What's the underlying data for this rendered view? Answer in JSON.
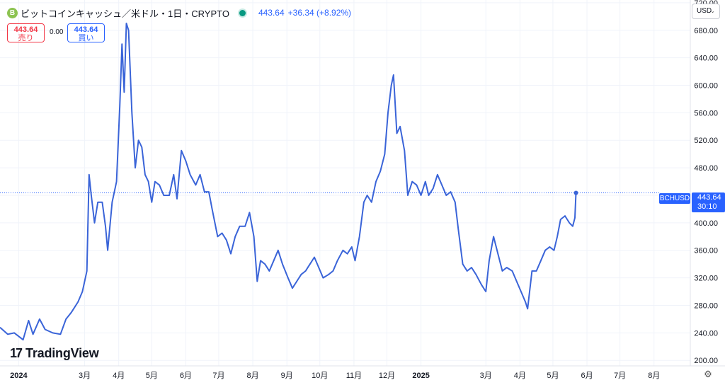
{
  "header": {
    "coin_icon": "B",
    "title": "ビットコインキャッシュ／米ドル・1日・CRYPTO",
    "price": "443.64",
    "change": "+36.34 (+8.92%)"
  },
  "sell": {
    "price": "443.64",
    "label": "売り"
  },
  "spread": "0.00",
  "buy": {
    "price": "443.64",
    "label": "買い"
  },
  "currency": "USD",
  "brand": "TradingView",
  "icons": {
    "coin": "bitcoin-cash-icon",
    "live": "market-open-dot-icon",
    "currency_chevron": "chevron-down-icon",
    "settings": "gear-icon",
    "logo": "tradingview-logo-icon"
  },
  "colors": {
    "line": "#3a64d8",
    "accent": "#2962ff",
    "sell": "#f23645",
    "live": "#089981",
    "grid": "#f0f3fa"
  },
  "price_tag": {
    "symbol": "BCHUSD",
    "price": "443.64",
    "countdown": "30:10"
  },
  "chart_data": {
    "type": "line",
    "series": [
      {
        "name": "BCHUSD",
        "points": [
          [
            "2023-12-15",
            248
          ],
          [
            "2023-12-22",
            238
          ],
          [
            "2023-12-28",
            240
          ],
          [
            "2024-01-05",
            230
          ],
          [
            "2024-01-10",
            258
          ],
          [
            "2024-01-14",
            238
          ],
          [
            "2024-01-20",
            260
          ],
          [
            "2024-01-25",
            245
          ],
          [
            "2024-02-01",
            240
          ],
          [
            "2024-02-08",
            238
          ],
          [
            "2024-02-13",
            260
          ],
          [
            "2024-02-18",
            270
          ],
          [
            "2024-02-24",
            285
          ],
          [
            "2024-02-28",
            300
          ],
          [
            "2024-03-03",
            330
          ],
          [
            "2024-03-05",
            470
          ],
          [
            "2024-03-07",
            440
          ],
          [
            "2024-03-10",
            400
          ],
          [
            "2024-03-13",
            430
          ],
          [
            "2024-03-17",
            430
          ],
          [
            "2024-03-20",
            395
          ],
          [
            "2024-03-22",
            360
          ],
          [
            "2024-03-26",
            430
          ],
          [
            "2024-03-30",
            460
          ],
          [
            "2024-04-02",
            570
          ],
          [
            "2024-04-04",
            660
          ],
          [
            "2024-04-06",
            590
          ],
          [
            "2024-04-08",
            690
          ],
          [
            "2024-04-10",
            680
          ],
          [
            "2024-04-13",
            560
          ],
          [
            "2024-04-16",
            480
          ],
          [
            "2024-04-19",
            520
          ],
          [
            "2024-04-22",
            510
          ],
          [
            "2024-04-25",
            470
          ],
          [
            "2024-04-28",
            460
          ],
          [
            "2024-05-01",
            430
          ],
          [
            "2024-05-04",
            460
          ],
          [
            "2024-05-08",
            455
          ],
          [
            "2024-05-12",
            440
          ],
          [
            "2024-05-17",
            440
          ],
          [
            "2024-05-21",
            470
          ],
          [
            "2024-05-24",
            435
          ],
          [
            "2024-05-28",
            505
          ],
          [
            "2024-06-01",
            490
          ],
          [
            "2024-06-05",
            470
          ],
          [
            "2024-06-10",
            455
          ],
          [
            "2024-06-14",
            470
          ],
          [
            "2024-06-18",
            445
          ],
          [
            "2024-06-22",
            445
          ],
          [
            "2024-06-25",
            420
          ],
          [
            "2024-06-30",
            380
          ],
          [
            "2024-07-04",
            385
          ],
          [
            "2024-07-08",
            375
          ],
          [
            "2024-07-12",
            355
          ],
          [
            "2024-07-16",
            380
          ],
          [
            "2024-07-20",
            395
          ],
          [
            "2024-07-25",
            395
          ],
          [
            "2024-07-29",
            415
          ],
          [
            "2024-08-02",
            380
          ],
          [
            "2024-08-05",
            315
          ],
          [
            "2024-08-08",
            345
          ],
          [
            "2024-08-12",
            340
          ],
          [
            "2024-08-16",
            330
          ],
          [
            "2024-08-20",
            345
          ],
          [
            "2024-08-24",
            360
          ],
          [
            "2024-08-28",
            340
          ],
          [
            "2024-09-02",
            320
          ],
          [
            "2024-09-06",
            305
          ],
          [
            "2024-09-10",
            315
          ],
          [
            "2024-09-14",
            325
          ],
          [
            "2024-09-18",
            330
          ],
          [
            "2024-09-22",
            340
          ],
          [
            "2024-09-26",
            350
          ],
          [
            "2024-09-30",
            335
          ],
          [
            "2024-10-04",
            320
          ],
          [
            "2024-10-09",
            325
          ],
          [
            "2024-10-13",
            330
          ],
          [
            "2024-10-17",
            345
          ],
          [
            "2024-10-22",
            360
          ],
          [
            "2024-10-26",
            355
          ],
          [
            "2024-10-30",
            365
          ],
          [
            "2024-11-02",
            345
          ],
          [
            "2024-11-06",
            380
          ],
          [
            "2024-11-10",
            430
          ],
          [
            "2024-11-13",
            440
          ],
          [
            "2024-11-17",
            430
          ],
          [
            "2024-11-21",
            460
          ],
          [
            "2024-11-25",
            475
          ],
          [
            "2024-11-29",
            500
          ],
          [
            "2024-12-02",
            560
          ],
          [
            "2024-12-05",
            600
          ],
          [
            "2024-12-07",
            615
          ],
          [
            "2024-12-10",
            530
          ],
          [
            "2024-12-13",
            540
          ],
          [
            "2024-12-17",
            505
          ],
          [
            "2024-12-20",
            440
          ],
          [
            "2024-12-24",
            460
          ],
          [
            "2024-12-28",
            455
          ],
          [
            "2025-01-01",
            440
          ],
          [
            "2025-01-05",
            460
          ],
          [
            "2025-01-08",
            440
          ],
          [
            "2025-01-12",
            450
          ],
          [
            "2025-01-16",
            470
          ],
          [
            "2025-01-20",
            455
          ],
          [
            "2025-01-24",
            440
          ],
          [
            "2025-01-28",
            445
          ],
          [
            "2025-02-01",
            430
          ],
          [
            "2025-02-04",
            390
          ],
          [
            "2025-02-08",
            340
          ],
          [
            "2025-02-12",
            330
          ],
          [
            "2025-02-16",
            335
          ],
          [
            "2025-02-20",
            325
          ],
          [
            "2025-02-25",
            310
          ],
          [
            "2025-03-01",
            300
          ],
          [
            "2025-03-04",
            345
          ],
          [
            "2025-03-08",
            380
          ],
          [
            "2025-03-12",
            355
          ],
          [
            "2025-03-16",
            330
          ],
          [
            "2025-03-20",
            335
          ],
          [
            "2025-03-25",
            330
          ],
          [
            "2025-03-29",
            315
          ],
          [
            "2025-04-02",
            300
          ],
          [
            "2025-04-06",
            285
          ],
          [
            "2025-04-08",
            275
          ],
          [
            "2025-04-12",
            330
          ],
          [
            "2025-04-16",
            330
          ],
          [
            "2025-04-20",
            345
          ],
          [
            "2025-04-24",
            360
          ],
          [
            "2025-04-28",
            365
          ],
          [
            "2025-05-02",
            360
          ],
          [
            "2025-05-05",
            380
          ],
          [
            "2025-05-08",
            405
          ],
          [
            "2025-05-12",
            410
          ],
          [
            "2025-05-16",
            400
          ],
          [
            "2025-05-19",
            395
          ],
          [
            "2025-05-21",
            407.3
          ],
          [
            "2025-05-22",
            443.64
          ]
        ]
      }
    ],
    "x_ticks": [
      {
        "label": "2024",
        "date": "2024-01-01",
        "bold": true
      },
      {
        "label": "3月",
        "date": "2024-03-01"
      },
      {
        "label": "4月",
        "date": "2024-04-01"
      },
      {
        "label": "5月",
        "date": "2024-05-01"
      },
      {
        "label": "6月",
        "date": "2024-06-01"
      },
      {
        "label": "7月",
        "date": "2024-07-01"
      },
      {
        "label": "8月",
        "date": "2024-08-01"
      },
      {
        "label": "9月",
        "date": "2024-09-01"
      },
      {
        "label": "10月",
        "date": "2024-10-01"
      },
      {
        "label": "11月",
        "date": "2024-11-01"
      },
      {
        "label": "12月",
        "date": "2024-12-01"
      },
      {
        "label": "2025",
        "date": "2025-01-01",
        "bold": true
      },
      {
        "label": "3月",
        "date": "2025-03-01"
      },
      {
        "label": "4月",
        "date": "2025-04-01"
      },
      {
        "label": "5月",
        "date": "2025-05-01"
      },
      {
        "label": "6月",
        "date": "2025-06-01"
      },
      {
        "label": "7月",
        "date": "2025-07-01"
      },
      {
        "label": "8月",
        "date": "2025-08-01"
      }
    ],
    "y_ticks": [
      200,
      240,
      280,
      320,
      360,
      400,
      440,
      480,
      520,
      560,
      600,
      640,
      680,
      720
    ],
    "ylim": [
      192,
      724
    ],
    "xlim": [
      "2023-12-15",
      "2025-09-03"
    ],
    "grid": true,
    "last_price": 443.64
  }
}
